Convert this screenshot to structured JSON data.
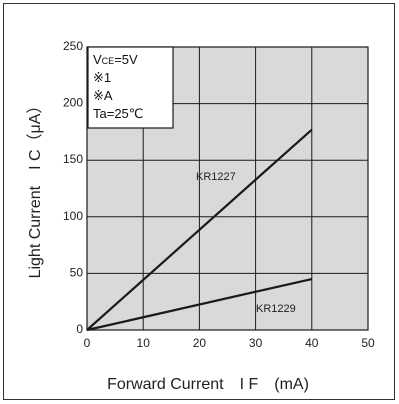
{
  "chart_data": {
    "type": "line",
    "xlabel": "Forward Current　I F　(mA)",
    "ylabel": "Light Current　I C（μA）",
    "xlim": [
      0,
      50
    ],
    "ylim": [
      0,
      250
    ],
    "xticks": [
      "0",
      "10",
      "20",
      "30",
      "40",
      "50"
    ],
    "yticks": [
      "0",
      "50",
      "100",
      "150",
      "200",
      "250"
    ],
    "grid": true,
    "plot_background": "#d9d9d9",
    "line_color": "#1a1a1a",
    "conditions": {
      "vce_symbol": "V",
      "vce_subscript": "CE",
      "vce_value": "=5V",
      "note1": "※1",
      "note2": "※A",
      "temperature": "Ta=25℃"
    },
    "series": [
      {
        "name": "KR1227",
        "x": [
          0,
          40
        ],
        "y": [
          0,
          177
        ]
      },
      {
        "name": "KR1229",
        "x": [
          0,
          40
        ],
        "y": [
          0,
          45
        ]
      }
    ]
  }
}
